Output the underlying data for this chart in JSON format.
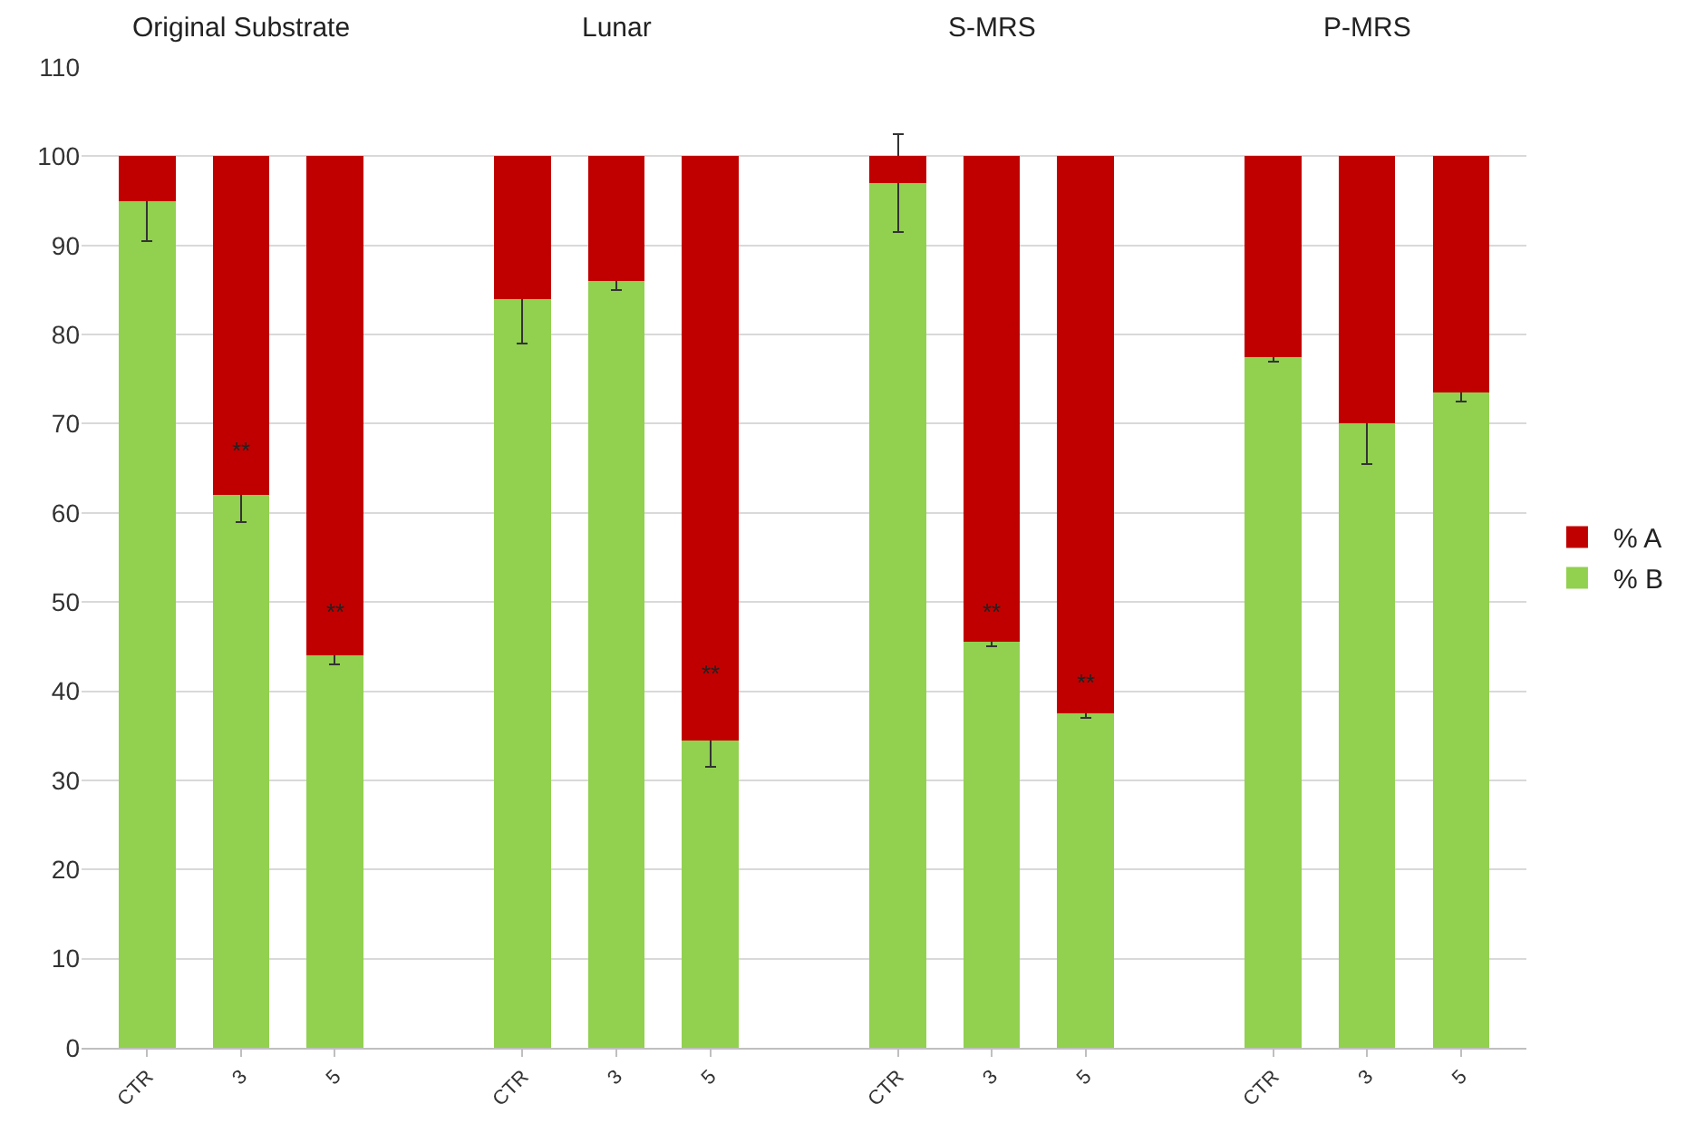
{
  "chart_data": {
    "type": "bar",
    "stacked": true,
    "categories": [
      "CTR",
      "3",
      "5",
      null,
      "CTR",
      "3",
      "5",
      null,
      "CTR",
      "3",
      "5",
      null,
      "CTR",
      "3",
      "5"
    ],
    "series": [
      {
        "name": "% B",
        "color": "#92d050",
        "values": [
          95,
          62,
          44,
          null,
          84,
          86,
          34.5,
          null,
          97,
          45.5,
          37.5,
          null,
          77.5,
          70,
          73.5
        ],
        "errors": [
          4.5,
          3,
          1,
          null,
          5,
          1,
          3,
          null,
          5.5,
          0.5,
          0.5,
          null,
          0.5,
          4.5,
          1
        ]
      },
      {
        "name": "% A",
        "color": "#c00000",
        "values": [
          5,
          38,
          56,
          null,
          16,
          14,
          65.5,
          null,
          3,
          54.5,
          62.5,
          null,
          22.5,
          30,
          26.5
        ]
      }
    ],
    "ylim": [
      0,
      110
    ],
    "yticks": [
      0,
      10,
      20,
      30,
      40,
      50,
      60,
      70,
      80,
      90,
      100,
      110
    ],
    "grid": "y",
    "legend": "right",
    "annotations": [
      "Original Substrate",
      "Lunar",
      "S-MRS",
      "P-MRS",
      "**",
      "**",
      "**",
      "**",
      "**"
    ]
  }
}
